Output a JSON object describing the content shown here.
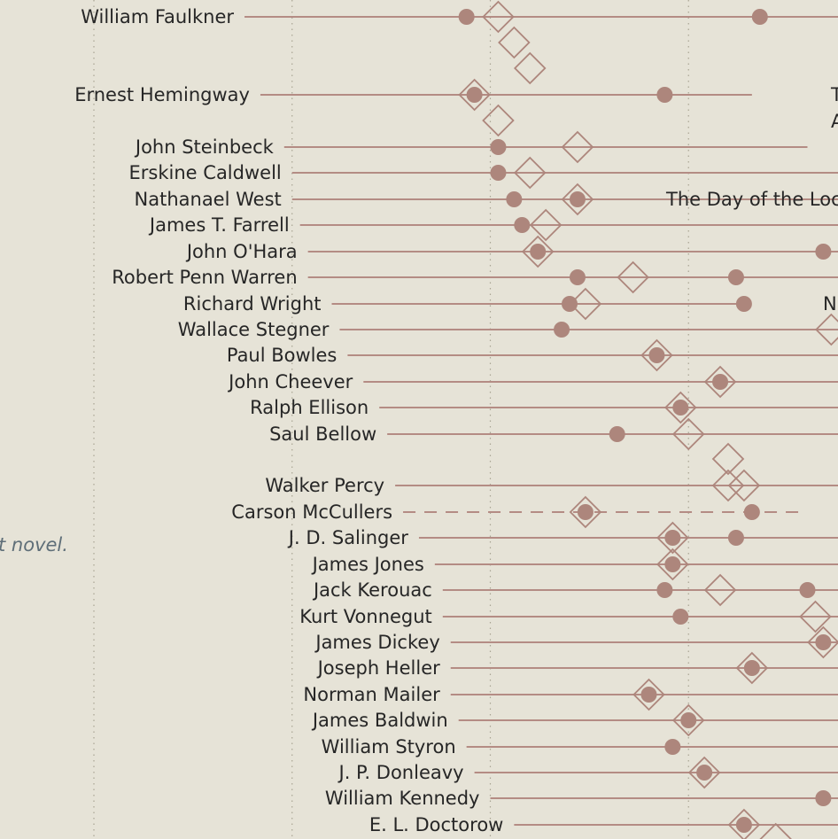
{
  "chart_data": {
    "type": "scatter",
    "x_scale": "year",
    "note": "t novel.",
    "authors": [
      {
        "name": "William Faulkner",
        "born": 1897,
        "dots": [
          1925,
          1962
        ],
        "diamonds": [
          1929
        ]
      },
      {
        "name": "Ernest Hemingway",
        "born": 1899,
        "end": 1961,
        "dots": [
          1926,
          1950
        ],
        "diamonds": [
          1926
        ],
        "book": "T",
        "book2": "A"
      },
      {
        "name": "John Steinbeck",
        "born": 1902,
        "end": 1968,
        "dots": [
          1929
        ],
        "diamonds": [
          1939
        ]
      },
      {
        "name": "Erskine Caldwell",
        "born": 1903,
        "dots": [
          1929
        ],
        "diamonds": [
          1933
        ]
      },
      {
        "name": "Nathanael West",
        "born": 1903,
        "dots": [
          1931,
          1939
        ],
        "diamonds": [
          1939
        ],
        "book": "The Day of the Loc"
      },
      {
        "name": "James T. Farrell",
        "born": 1904,
        "dots": [
          1932
        ],
        "diamonds": [
          1935
        ]
      },
      {
        "name": "John O'Hara",
        "born": 1905,
        "dots": [
          1934,
          1970
        ],
        "diamonds": [
          1934
        ]
      },
      {
        "name": "Robert Penn Warren",
        "born": 1905,
        "dots": [
          1939,
          1959
        ],
        "diamonds": [
          1946
        ]
      },
      {
        "name": "Richard Wright",
        "born": 1908,
        "end": 1960,
        "dots": [
          1938,
          1960
        ],
        "diamonds": [
          1940
        ],
        "book": "N"
      },
      {
        "name": "Wallace Stegner",
        "born": 1909,
        "dots": [
          1937
        ],
        "diamonds": [
          1971
        ]
      },
      {
        "name": "Paul Bowles",
        "born": 1910,
        "dots": [
          1949
        ],
        "diamonds": [
          1949
        ]
      },
      {
        "name": "John Cheever",
        "born": 1912,
        "dots": [
          1957
        ],
        "diamonds": [
          1957
        ]
      },
      {
        "name": "Ralph Ellison",
        "born": 1914,
        "dots": [
          1952
        ],
        "diamonds": [
          1952
        ]
      },
      {
        "name": "Saul Bellow",
        "born": 1915,
        "dots": [
          1944
        ],
        "diamonds": [
          1953
        ]
      },
      {
        "name": "Walker Percy",
        "born": 1916,
        "dots": [],
        "diamonds": [
          1958,
          1960
        ]
      },
      {
        "name": "Carson McCullers",
        "born": 1917,
        "end": 1967,
        "dashed": true,
        "dots": [
          1940,
          1961
        ],
        "diamonds": [
          1940
        ]
      },
      {
        "name": "J. D. Salinger",
        "born": 1919,
        "dots": [
          1951,
          1959
        ],
        "diamonds": [
          1951
        ]
      },
      {
        "name": "James Jones",
        "born": 1921,
        "dots": [
          1951
        ],
        "diamonds": [
          1951
        ]
      },
      {
        "name": "Jack Kerouac",
        "born": 1922,
        "dots": [
          1950,
          1968
        ],
        "diamonds": [
          1957
        ]
      },
      {
        "name": "Kurt Vonnegut",
        "born": 1922,
        "dots": [
          1952
        ],
        "diamonds": [
          1969
        ]
      },
      {
        "name": "James Dickey",
        "born": 1923,
        "dots": [
          1970
        ],
        "diamonds": [
          1970
        ]
      },
      {
        "name": "Joseph Heller",
        "born": 1923,
        "dots": [
          1961
        ],
        "diamonds": [
          1961
        ]
      },
      {
        "name": "Norman Mailer",
        "born": 1923,
        "dots": [
          1948
        ],
        "diamonds": [
          1948
        ]
      },
      {
        "name": "James Baldwin",
        "born": 1924,
        "dots": [
          1953
        ],
        "diamonds": [
          1953
        ]
      },
      {
        "name": "William Styron",
        "born": 1925,
        "dots": [
          1951
        ],
        "diamonds": []
      },
      {
        "name": "J. P. Donleavy",
        "born": 1926,
        "dots": [
          1955
        ],
        "diamonds": [
          1955
        ]
      },
      {
        "name": "William Kennedy",
        "born": 1928,
        "dots": [
          1970
        ],
        "diamonds": []
      },
      {
        "name": "E. L. Doctorow",
        "born": 1931,
        "dots": [
          1960
        ],
        "diamonds": [
          1960
        ]
      }
    ]
  }
}
